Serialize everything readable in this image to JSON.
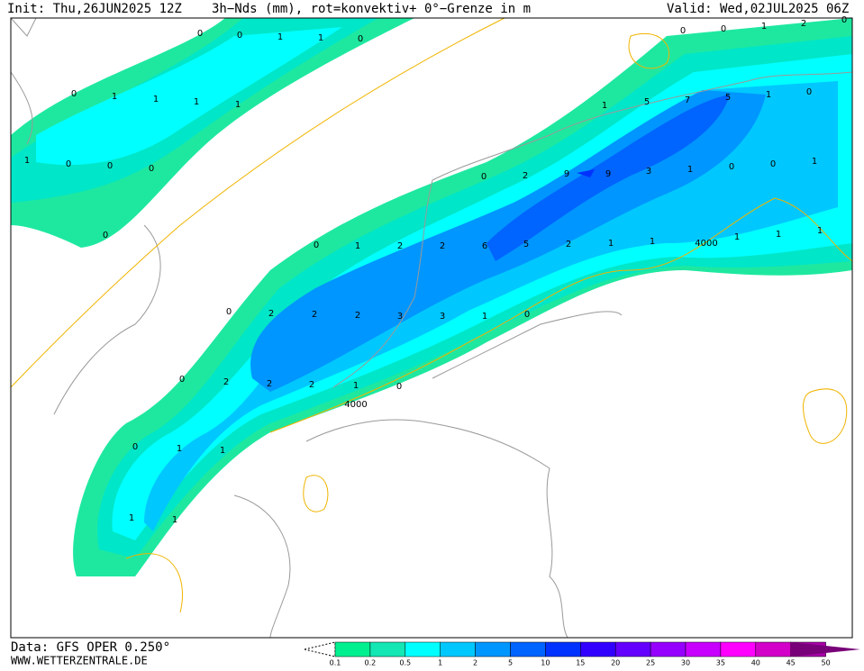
{
  "header": {
    "init": "Init: Thu,26JUN2025 12Z",
    "title": "3h−Nds (mm), rot=konvektiv+ 0°−Grenze in m",
    "valid": "Valid: Wed,02JUL2025 06Z"
  },
  "footer": {
    "source": "Data: GFS OPER 0.250°",
    "website": "WWW.WETTERZENTRALE.DE"
  },
  "map_labels": [
    "0",
    "0",
    "1",
    "1",
    "0",
    "0",
    "1",
    "1",
    "1",
    "1",
    "1",
    "0",
    "0",
    "0",
    "0",
    "0",
    "0",
    "1",
    "2",
    "0",
    "1",
    "5",
    "7",
    "5",
    "1",
    "0",
    "0",
    "2",
    "9",
    "9",
    "3",
    "1",
    "0",
    "0",
    "1",
    "0",
    "1",
    "2",
    "2",
    "6",
    "5",
    "2",
    "1",
    "1",
    "1",
    "1",
    "1",
    "0",
    "2",
    "2",
    "2",
    "3",
    "3",
    "1",
    "0",
    "0",
    "2",
    "2",
    "2",
    "1",
    "0",
    "0",
    "1",
    "1",
    "1",
    "1",
    "4000",
    "4000"
  ],
  "legend": {
    "ticks": [
      0.1,
      0.2,
      0.5,
      1,
      2,
      5,
      10,
      15,
      20,
      25,
      30,
      35,
      40,
      45,
      50
    ],
    "colors": [
      "#00f090",
      "#14e6b4",
      "#00ffff",
      "#00c8ff",
      "#0096ff",
      "#0064ff",
      "#0032ff",
      "#3200ff",
      "#6400ff",
      "#9600ff",
      "#c800ff",
      "#ff00ff",
      "#d200c8",
      "#aa00aa",
      "#780078"
    ]
  }
}
